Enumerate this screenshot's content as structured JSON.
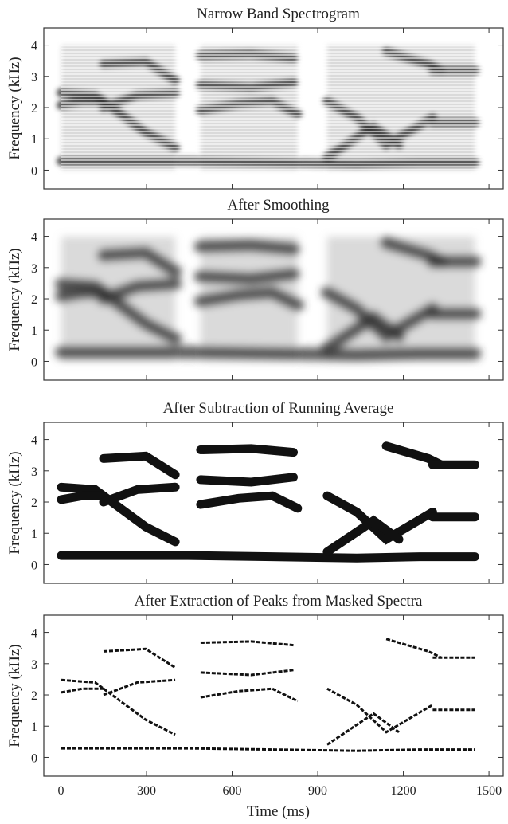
{
  "chart_data": [
    {
      "type": "spectrogram",
      "style": "narrow-band",
      "title": "Narrow Band Spectrogram",
      "y_label": "Frequency (kHz)",
      "xlim": [
        -60,
        1550
      ],
      "xticks": [
        0,
        300,
        600,
        900,
        1200,
        1500
      ],
      "ylim": [
        -0.6,
        4.55
      ],
      "yticks": [
        0,
        1,
        2,
        3,
        4
      ]
    },
    {
      "type": "spectrogram",
      "style": "smoothed",
      "title": "After Smoothing",
      "y_label": "Frequency (kHz)",
      "xlim": [
        -60,
        1550
      ],
      "xticks": [
        0,
        300,
        600,
        900,
        1200,
        1500
      ],
      "ylim": [
        -0.6,
        4.55
      ],
      "yticks": [
        0,
        1,
        2,
        3,
        4
      ]
    },
    {
      "type": "spectrogram",
      "style": "thresholded",
      "title": "After Subtraction of Running Average",
      "y_label": "Frequency (kHz)",
      "xlim": [
        -60,
        1550
      ],
      "xticks": [
        0,
        300,
        600,
        900,
        1200,
        1500
      ],
      "ylim": [
        -0.6,
        4.55
      ],
      "yticks": [
        0,
        1,
        2,
        3,
        4
      ]
    },
    {
      "type": "spectrogram",
      "style": "peaks",
      "title": "After Extraction of Peaks from Masked Spectra",
      "y_label": "Frequency (kHz)",
      "x_label": "Time (ms)",
      "xlim": [
        -60,
        1550
      ],
      "xticks": [
        0,
        300,
        600,
        900,
        1200,
        1500
      ],
      "ylim": [
        -0.6,
        4.55
      ],
      "yticks": [
        0,
        1,
        2,
        3,
        4
      ]
    }
  ]
}
